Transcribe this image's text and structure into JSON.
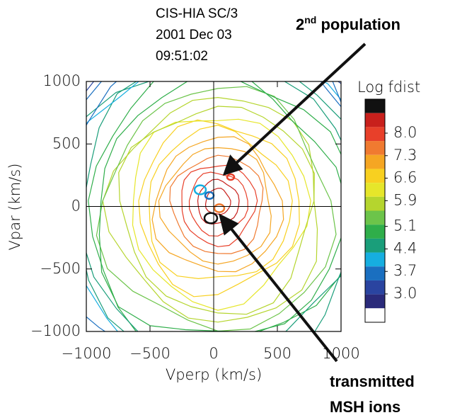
{
  "chart_data": {
    "type": "contour",
    "header": [
      "CIS-HIA  SC/3",
      "2001 Dec 03",
      "09:51:02"
    ],
    "xlabel": "Vperp  (km/s)",
    "ylabel": "Vpar (km/s)",
    "xlim": [
      -1000,
      1000
    ],
    "ylim": [
      -1000,
      1000
    ],
    "xticks": [
      {
        "value": -1000,
        "label": "−1000"
      },
      {
        "value": -500,
        "label": "−500"
      },
      0,
      500,
      1000
    ],
    "yticks": [
      {
        "value": -1000,
        "label": "−1000"
      },
      {
        "value": -500,
        "label": "−500"
      },
      0,
      500,
      1000
    ],
    "colorbar": {
      "title": "Log fdist",
      "colors": [
        "#111111",
        "#c8201c",
        "#e8402a",
        "#f07a30",
        "#f5a623",
        "#f8d020",
        "#e6e62a",
        "#b5d52e",
        "#6cc44a",
        "#2fae4a",
        "#1a9e7a",
        "#16aee0",
        "#1a6fc0",
        "#2a44a0",
        "#2a2a7a",
        "#ffffff"
      ],
      "ticks": [
        {
          "value": 8,
          "label": "8.0"
        },
        {
          "value": 7.3,
          "label": "7.3"
        },
        {
          "value": 6.6,
          "label": "6.6"
        },
        {
          "value": 5.9,
          "label": "5.9"
        },
        {
          "value": 5.1,
          "label": "5.1"
        },
        {
          "value": 4.4,
          "label": "4.4"
        },
        {
          "value": 3.7,
          "label": "3.7"
        },
        {
          "value": 3,
          "label": "3.0"
        }
      ]
    },
    "annotations": [
      {
        "base": "2",
        "sup": "nd",
        "text": " population"
      },
      {
        "lines": [
          "transmitted",
          "MSH ions"
        ]
      }
    ]
  }
}
